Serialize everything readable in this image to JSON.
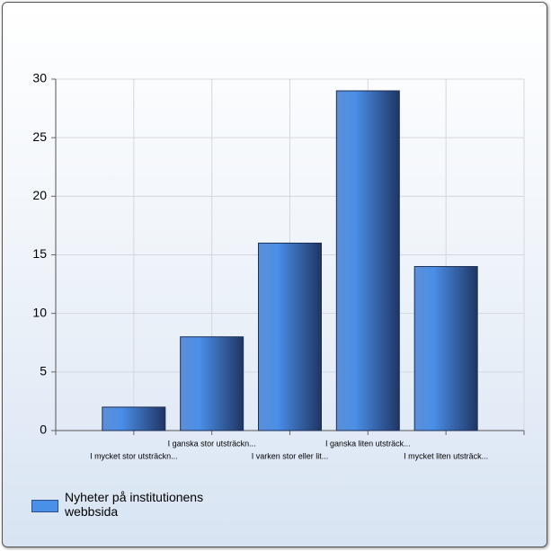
{
  "chart_data": {
    "type": "bar",
    "categories": [
      "I mycket stor utsträckn...",
      "I ganska stor utsträckn...",
      "I varken stor eller lit...",
      "I ganska liten utsträck...",
      "I mycket liten utsträck..."
    ],
    "series": [
      {
        "name": "Nyheter på institutionens webbsida",
        "color": "#4a8fe8",
        "values": [
          2,
          8,
          16,
          29,
          14
        ]
      }
    ],
    "ylim": [
      0,
      30
    ],
    "yticks": [
      0,
      5,
      10,
      15,
      20,
      25,
      30
    ],
    "grid": true
  }
}
